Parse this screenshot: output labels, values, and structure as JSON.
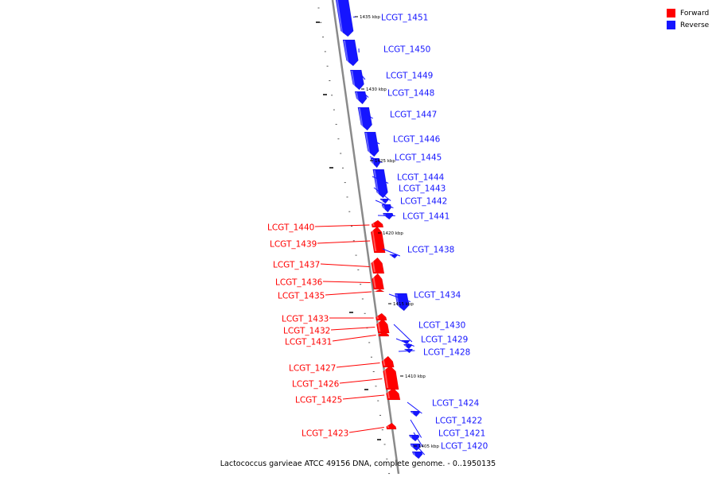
{
  "legend": {
    "forward_label": "Forward",
    "reverse_label": "Reverse",
    "forward_color": "#ff0000",
    "reverse_color": "#1515ff"
  },
  "caption": "Lactococcus garvieae ATCC 49156 DNA, complete genome. - 0..1950135",
  "scale_labels": [
    "1435 kbp",
    "1430 kbp",
    "1425 kbp",
    "1420 kbp",
    "1415 kbp",
    "1410 kbp",
    "1405 kbp"
  ],
  "genes": [
    {
      "label": "LCGT_1451",
      "strand": "reverse"
    },
    {
      "label": "LCGT_1450",
      "strand": "reverse"
    },
    {
      "label": "LCGT_1449",
      "strand": "reverse"
    },
    {
      "label": "LCGT_1448",
      "strand": "reverse"
    },
    {
      "label": "LCGT_1447",
      "strand": "reverse"
    },
    {
      "label": "LCGT_1446",
      "strand": "reverse"
    },
    {
      "label": "LCGT_1445",
      "strand": "reverse"
    },
    {
      "label": "LCGT_1444",
      "strand": "reverse"
    },
    {
      "label": "LCGT_1443",
      "strand": "reverse"
    },
    {
      "label": "LCGT_1442",
      "strand": "reverse"
    },
    {
      "label": "LCGT_1441",
      "strand": "reverse"
    },
    {
      "label": "LCGT_1440",
      "strand": "forward"
    },
    {
      "label": "LCGT_1439",
      "strand": "forward"
    },
    {
      "label": "LCGT_1438",
      "strand": "reverse"
    },
    {
      "label": "LCGT_1437",
      "strand": "forward"
    },
    {
      "label": "LCGT_1436",
      "strand": "forward"
    },
    {
      "label": "LCGT_1435",
      "strand": "forward"
    },
    {
      "label": "LCGT_1434",
      "strand": "reverse"
    },
    {
      "label": "LCGT_1433",
      "strand": "forward"
    },
    {
      "label": "LCGT_1432",
      "strand": "forward"
    },
    {
      "label": "LCGT_1431",
      "strand": "forward"
    },
    {
      "label": "LCGT_1430",
      "strand": "reverse"
    },
    {
      "label": "LCGT_1429",
      "strand": "reverse"
    },
    {
      "label": "LCGT_1428",
      "strand": "reverse"
    },
    {
      "label": "LCGT_1427",
      "strand": "forward"
    },
    {
      "label": "LCGT_1426",
      "strand": "forward"
    },
    {
      "label": "LCGT_1425",
      "strand": "forward"
    },
    {
      "label": "LCGT_1424",
      "strand": "reverse"
    },
    {
      "label": "LCGT_1423",
      "strand": "forward"
    },
    {
      "label": "LCGT_1422",
      "strand": "reverse"
    },
    {
      "label": "LCGT_1421",
      "strand": "reverse"
    },
    {
      "label": "LCGT_1420",
      "strand": "reverse"
    }
  ]
}
